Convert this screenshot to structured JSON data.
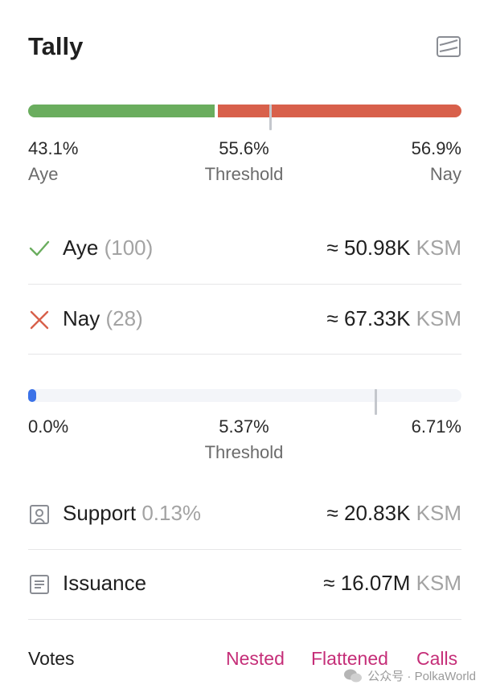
{
  "title": "Tally",
  "icons": {
    "chart_toggle": "line-chart-box-icon",
    "aye": "check-icon",
    "nay": "x-icon",
    "support": "user-card-icon",
    "issuance": "document-lines-icon",
    "watermark": "wechat-icon"
  },
  "colors": {
    "aye": "#6aad5e",
    "nay": "#d8604b",
    "support_dot": "#3b72e8",
    "track": "#f3f5f9",
    "accent": "#c52e78"
  },
  "approval": {
    "aye_fraction": 0.431,
    "threshold_fraction": 0.556,
    "aye_pct": "43.1%",
    "aye_label": "Aye",
    "threshold_pct": "55.6%",
    "threshold_label": "Threshold",
    "nay_pct": "56.9%",
    "nay_label": "Nay"
  },
  "rows": {
    "aye": {
      "label": "Aye",
      "count": "(100)",
      "approx": "≈ 50.98K",
      "unit": "KSM"
    },
    "nay": {
      "label": "Nay",
      "count": "(28)",
      "approx": "≈ 67.33K",
      "unit": "KSM"
    }
  },
  "support": {
    "current_fraction": 0.0,
    "threshold_fraction": 0.8,
    "left_pct": "0.0%",
    "threshold_pct": "5.37%",
    "threshold_label": "Threshold",
    "right_pct": "6.71%",
    "row_label": "Support",
    "row_pct": "0.13%",
    "approx": "≈ 20.83K",
    "unit": "KSM"
  },
  "issuance": {
    "label": "Issuance",
    "approx": "≈ 16.07M",
    "unit": "KSM"
  },
  "votes": {
    "label": "Votes",
    "tabs": [
      "Nested",
      "Flattened",
      "Calls"
    ]
  },
  "watermark": "公众号 · PolkaWorld"
}
